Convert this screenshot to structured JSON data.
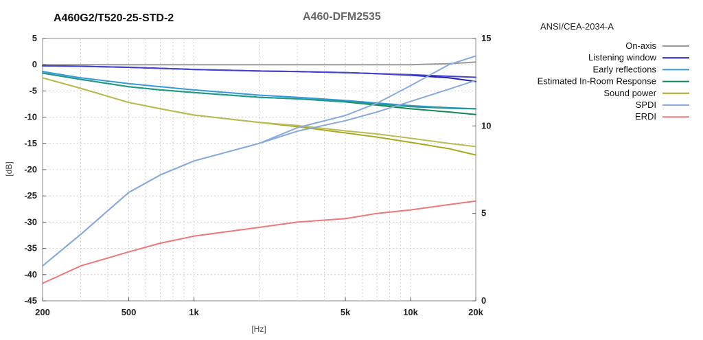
{
  "chart_data": {
    "type": "line",
    "title_left": "A460G2/T520-25-STD-2",
    "title_center": "A460-DFM2535",
    "xlabel": "[Hz]",
    "ylabel": "[dB]",
    "xscale": "log",
    "xlim": [
      200,
      20000
    ],
    "ylim": [
      -45,
      5
    ],
    "y2lim": [
      0,
      15
    ],
    "x_ticks": [
      {
        "value": 200,
        "label": "200"
      },
      {
        "value": 500,
        "label": "500"
      },
      {
        "value": 1000,
        "label": "1k"
      },
      {
        "value": 5000,
        "label": "5k"
      },
      {
        "value": 10000,
        "label": "10k"
      },
      {
        "value": 20000,
        "label": "20k"
      }
    ],
    "y_ticks": [
      {
        "value": 5,
        "label": "5"
      },
      {
        "value": 0,
        "label": "0"
      },
      {
        "value": -5,
        "label": "-5"
      },
      {
        "value": -10,
        "label": "-10"
      },
      {
        "value": -15,
        "label": "-15"
      },
      {
        "value": -20,
        "label": "-20"
      },
      {
        "value": -25,
        "label": "-25"
      },
      {
        "value": -30,
        "label": "-30"
      },
      {
        "value": -35,
        "label": "-35"
      },
      {
        "value": -40,
        "label": "-40"
      },
      {
        "value": -45,
        "label": "-45"
      }
    ],
    "y2_ticks": [
      {
        "value": 0,
        "label": "0"
      },
      {
        "value": 5,
        "label": "5"
      },
      {
        "value": 10,
        "label": "10"
      },
      {
        "value": 15,
        "label": "15"
      }
    ],
    "grid": true,
    "legend": {
      "title": "ANSI/CEA-2034-A",
      "position": "right",
      "entries": [
        {
          "name": "On-axis",
          "color": "#999999"
        },
        {
          "name": "Listening window",
          "color": "#2222aa"
        },
        {
          "name": "Early reflections",
          "color": "#3399dd"
        },
        {
          "name": "Estimated In-Room Response",
          "color": "#118855"
        },
        {
          "name": "Sound power",
          "color": "#aaaa22"
        },
        {
          "name": "SPDI",
          "color": "#88aadd"
        },
        {
          "name": "ERDI",
          "color": "#ee7777"
        }
      ]
    },
    "x": [
      200,
      300,
      500,
      700,
      1000,
      2000,
      3000,
      5000,
      7000,
      10000,
      15000,
      20000
    ],
    "series": [
      {
        "name": "On-axis",
        "axis": "y",
        "color": "#999999",
        "values": [
          0,
          0,
          0,
          0,
          0,
          0,
          0,
          0,
          0,
          0,
          0.2,
          0.5
        ]
      },
      {
        "name": "Listening window",
        "axis": "y",
        "color": "#2222aa",
        "values": [
          -0.2,
          -0.3,
          -0.5,
          -0.7,
          -0.9,
          -1.2,
          -1.3,
          -1.5,
          -1.7,
          -2.0,
          -2.5,
          -3.2
        ]
      },
      {
        "name": "Listening window (alt)",
        "axis": "y",
        "color": "#4444cc",
        "values": [
          -0.2,
          -0.3,
          -0.5,
          -0.7,
          -0.9,
          -1.2,
          -1.3,
          -1.5,
          -1.7,
          -1.9,
          -2.2,
          -2.4
        ]
      },
      {
        "name": "Early reflections",
        "axis": "y",
        "color": "#3399dd",
        "values": [
          -1.3,
          -2.5,
          -3.6,
          -4.2,
          -4.8,
          -5.8,
          -6.2,
          -6.8,
          -7.3,
          -7.8,
          -8.2,
          -8.4
        ]
      },
      {
        "name": "Estimated In-Room Response",
        "axis": "y",
        "color": "#118855",
        "values": [
          -1.6,
          -2.8,
          -4.2,
          -4.8,
          -5.3,
          -6.2,
          -6.5,
          -7.1,
          -7.7,
          -8.4,
          -9.0,
          -9.5
        ]
      },
      {
        "name": "Estimated In-Room Response (alt)",
        "axis": "y",
        "color": "#22998a",
        "values": [
          -1.6,
          -2.8,
          -4.2,
          -4.8,
          -5.3,
          -6.2,
          -6.5,
          -7.0,
          -7.5,
          -8.0,
          -8.3,
          -8.4
        ]
      },
      {
        "name": "Sound power",
        "axis": "y",
        "color": "#aaaa22",
        "values": [
          -2.5,
          -4.5,
          -7.2,
          -8.4,
          -9.6,
          -11.0,
          -11.8,
          -13.0,
          -13.8,
          -14.8,
          -16.0,
          -17.2
        ]
      },
      {
        "name": "Sound power (alt)",
        "axis": "y",
        "color": "#bbbb55",
        "values": [
          -2.5,
          -4.5,
          -7.2,
          -8.4,
          -9.6,
          -11.0,
          -11.6,
          -12.6,
          -13.2,
          -14.0,
          -15.0,
          -15.6
        ]
      },
      {
        "name": "SPDI",
        "axis": "y2",
        "color": "#88aadd",
        "values": [
          2.0,
          3.8,
          6.2,
          7.2,
          8.0,
          9.0,
          9.9,
          10.6,
          11.3,
          12.3,
          13.5,
          14.0
        ]
      },
      {
        "name": "SPDI (alt)",
        "axis": "y2",
        "color": "#88aadd",
        "values": [
          2.0,
          3.8,
          6.2,
          7.2,
          8.0,
          9.0,
          9.7,
          10.3,
          10.8,
          11.4,
          12.1,
          12.6
        ]
      },
      {
        "name": "ERDI",
        "axis": "y2",
        "color": "#ee7777",
        "values": [
          1.0,
          2.0,
          2.8,
          3.3,
          3.7,
          4.2,
          4.5,
          4.7,
          5.0,
          5.2,
          5.5,
          5.7
        ]
      }
    ]
  }
}
